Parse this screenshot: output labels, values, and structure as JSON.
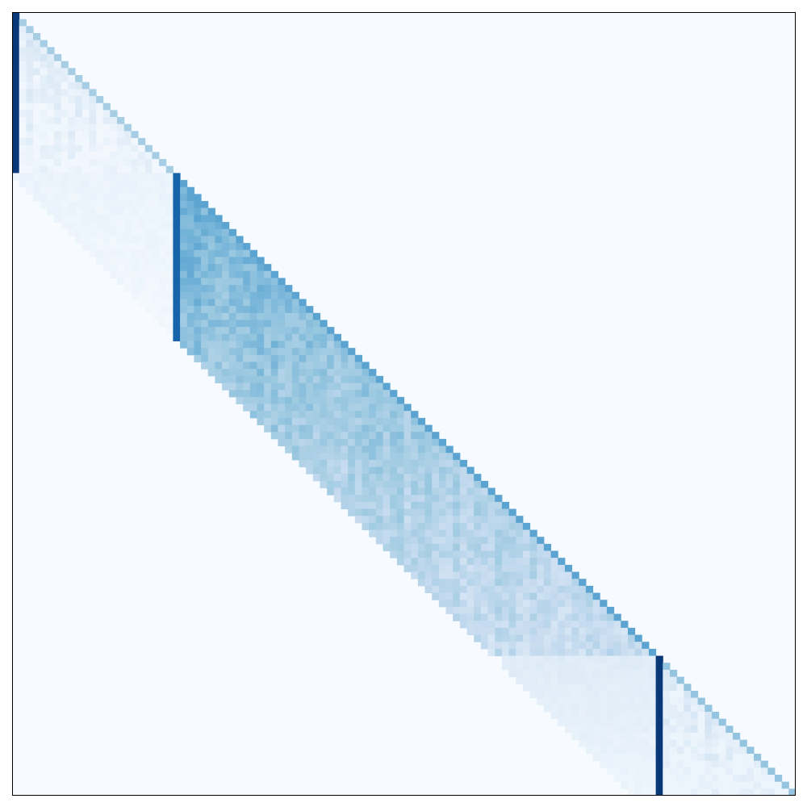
{
  "chart_data": {
    "type": "heatmap",
    "description_of_structure": "",
    "title": "",
    "xlabel": "",
    "ylabel": "",
    "grid": false,
    "legend": "none",
    "size": [
      112,
      112
    ],
    "colormap": {
      "name": "Blues",
      "stops": [
        "#f7fbff",
        "#deebf7",
        "#c6dbef",
        "#9ecae1",
        "#6baed6",
        "#4292c6",
        "#2171b5",
        "#08519c",
        "#08306b"
      ]
    },
    "background_value": 0.0,
    "blocks": [
      {
        "name": "block-1",
        "start": 0,
        "end": 23,
        "window": 23,
        "first_column_value": 0.97,
        "diagonal_value": 0.35,
        "base_level": 0.12,
        "decay_fraction": 0.85,
        "floor": 0.03
      },
      {
        "name": "block-2",
        "start": 23,
        "end": 92,
        "window": 23,
        "first_column_value": 0.8,
        "diagonal_value": 0.55,
        "base_level": 0.5,
        "decay_fraction": 0.55,
        "floor": 0.15
      },
      {
        "name": "block-3",
        "start": 92,
        "end": 112,
        "window": 23,
        "first_column_value": 0.97,
        "diagonal_value": 0.4,
        "base_level": 0.15,
        "decay_fraction": 0.7,
        "floor": 0.05
      }
    ],
    "cross_block_tails": [
      {
        "rows": [
          23,
          46
        ],
        "cols": [
          0,
          23
        ],
        "level": 0.06,
        "floor": 0.02
      },
      {
        "rows": [
          92,
          112
        ],
        "cols": [
          70,
          92
        ],
        "level": 0.12,
        "floor": 0.04
      }
    ],
    "texture_amplitude": 0.06
  }
}
